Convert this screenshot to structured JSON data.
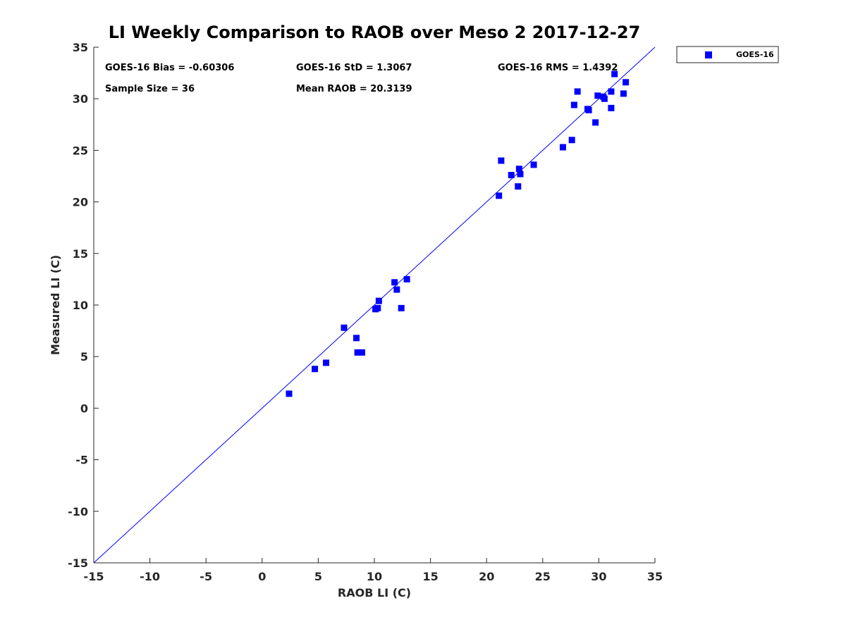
{
  "chart_data": {
    "type": "scatter",
    "title": "LI Weekly Comparison to RAOB over Meso 2 2017-12-27",
    "xlabel": "RAOB LI (C)",
    "ylabel": "Measured LI (C)",
    "xlim": [
      -15,
      35
    ],
    "ylim": [
      -15,
      35
    ],
    "xticks": [
      -15,
      -10,
      -5,
      0,
      5,
      10,
      15,
      20,
      25,
      30,
      35
    ],
    "yticks": [
      -15,
      -10,
      -5,
      0,
      5,
      10,
      15,
      20,
      25,
      30,
      35
    ],
    "grid": false,
    "legend_position": "outside-top-right",
    "reference_line": {
      "from": [
        -15,
        -15
      ],
      "to": [
        35,
        35
      ],
      "color": "#0000ff"
    },
    "stats": {
      "bias": "GOES-16 Bias = -0.60306",
      "std": "GOES-16 StD = 1.3067",
      "rms": "GOES-16 RMS = 1.4392",
      "sample_size": "Sample Size = 36",
      "mean_raob": "Mean RAOB = 20.3139"
    },
    "series": [
      {
        "name": "GOES-16",
        "color": "#0000ff",
        "marker": "square",
        "points": [
          [
            2.4,
            1.4
          ],
          [
            4.7,
            3.8
          ],
          [
            5.7,
            4.4
          ],
          [
            7.3,
            7.8
          ],
          [
            8.4,
            6.8
          ],
          [
            8.5,
            5.4
          ],
          [
            8.9,
            5.4
          ],
          [
            10.1,
            9.6
          ],
          [
            10.3,
            9.7
          ],
          [
            10.4,
            10.4
          ],
          [
            11.8,
            12.2
          ],
          [
            12.0,
            11.5
          ],
          [
            12.4,
            9.7
          ],
          [
            12.9,
            12.5
          ],
          [
            21.1,
            20.6
          ],
          [
            21.3,
            24.0
          ],
          [
            22.2,
            22.6
          ],
          [
            22.8,
            21.5
          ],
          [
            22.9,
            23.2
          ],
          [
            23.0,
            22.7
          ],
          [
            24.2,
            23.6
          ],
          [
            26.8,
            25.3
          ],
          [
            27.6,
            26.0
          ],
          [
            27.8,
            29.4
          ],
          [
            28.1,
            30.7
          ],
          [
            29.0,
            29.0
          ],
          [
            29.1,
            28.9
          ],
          [
            29.7,
            27.7
          ],
          [
            29.9,
            30.3
          ],
          [
            30.4,
            30.2
          ],
          [
            30.5,
            30.0
          ],
          [
            31.1,
            30.7
          ],
          [
            31.1,
            29.1
          ],
          [
            31.4,
            32.4
          ],
          [
            32.2,
            30.5
          ],
          [
            32.4,
            31.6
          ]
        ]
      }
    ]
  },
  "legend": {
    "entries": [
      "GOES-16"
    ]
  }
}
